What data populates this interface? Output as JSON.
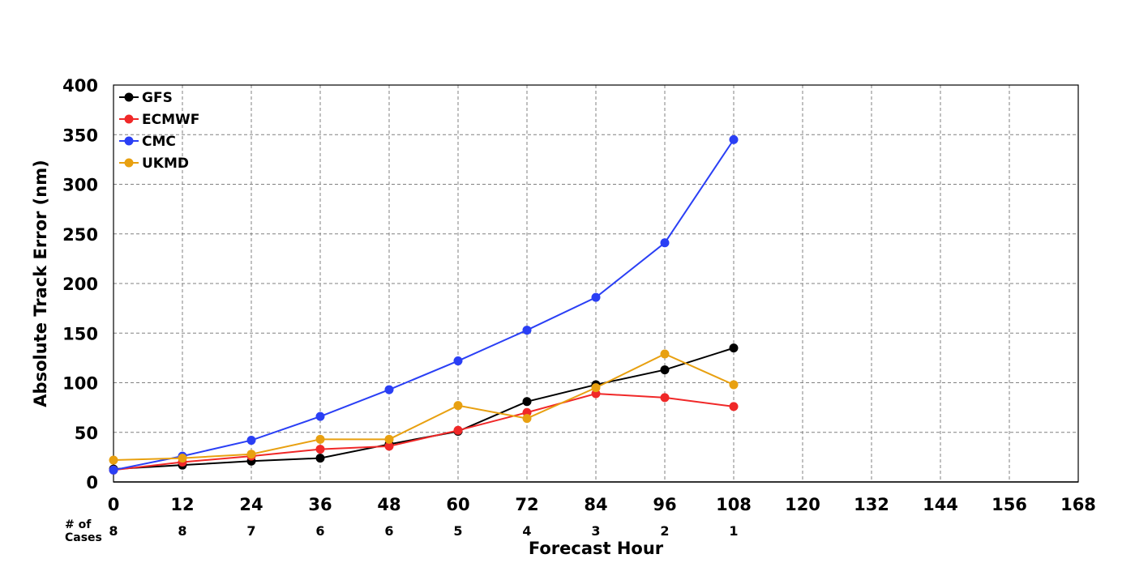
{
  "chart_data": {
    "type": "line",
    "xlabel": "Forecast Hour",
    "ylabel": "Absolute Track Error (nm)",
    "xlim": [
      0,
      168
    ],
    "ylim": [
      0,
      400
    ],
    "xticks": [
      0,
      12,
      24,
      36,
      48,
      60,
      72,
      84,
      96,
      108,
      120,
      132,
      144,
      156,
      168
    ],
    "yticks": [
      0,
      50,
      100,
      150,
      200,
      250,
      300,
      350,
      400
    ],
    "grid": true,
    "legend_position": "top-left",
    "x": [
      0,
      12,
      24,
      36,
      48,
      60,
      72,
      84,
      96,
      108
    ],
    "series": [
      {
        "name": "GFS",
        "color": "#000000",
        "values": [
          13,
          17,
          21,
          24,
          38,
          51,
          81,
          98,
          113,
          135
        ]
      },
      {
        "name": "ECMWF",
        "color": "#f02828",
        "values": [
          12,
          20,
          26,
          33,
          36,
          52,
          70,
          89,
          85,
          76
        ]
      },
      {
        "name": "CMC",
        "color": "#2a3ff5",
        "values": [
          12,
          26,
          42,
          66,
          93,
          122,
          153,
          186,
          241,
          345
        ]
      },
      {
        "name": "UKMD",
        "color": "#e8a010",
        "values": [
          22,
          24,
          28,
          43,
          43,
          77,
          64,
          95,
          129,
          98
        ]
      }
    ],
    "cases": {
      "label": "# of\nCases",
      "values": [
        8,
        8,
        7,
        6,
        6,
        5,
        4,
        3,
        2,
        1
      ]
    }
  }
}
